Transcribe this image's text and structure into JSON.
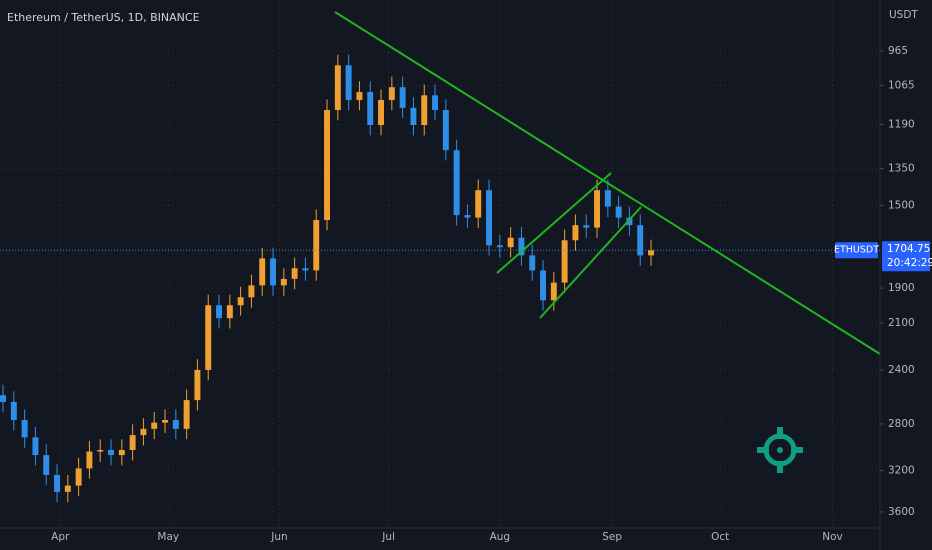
{
  "chart_data": {
    "type": "candlestick",
    "title": "Ethereum / TetherUS, 1D, BINANCE",
    "y_unit": "USDT",
    "symbol": "ETHUSDT",
    "last_price": 1704.75,
    "countdown": "20:42:29",
    "up_color": "#2f8ee8",
    "down_color": "#f0a030",
    "log_scale": true,
    "y_inverted": true,
    "grid": true,
    "categories": [
      null,
      null,
      null,
      null,
      null,
      null,
      null,
      null,
      null,
      null,
      null,
      null,
      null,
      null,
      null,
      null,
      null,
      null,
      null,
      null,
      null,
      null,
      null,
      null,
      null,
      null,
      null,
      null,
      null,
      null,
      null,
      null,
      null,
      null,
      null,
      null,
      null,
      null,
      null,
      null,
      null,
      null,
      null,
      null,
      null,
      null,
      null,
      null,
      null,
      null,
      null,
      null,
      null,
      null,
      null,
      null,
      null,
      null,
      null,
      null,
      null
    ],
    "open": [
      2580,
      2630,
      2769,
      2910,
      3061,
      3240,
      3400,
      3340,
      3180,
      3030,
      3017,
      3061,
      3017,
      2891,
      2840,
      2790,
      2769,
      2840,
      2616,
      2400,
      1995,
      2070,
      1995,
      1950,
      1885,
      1745,
      1885,
      1850,
      1795,
      1806,
      1564,
      1142,
      1005,
      1110,
      1085,
      1192,
      1110,
      1070,
      1135,
      1192,
      1095,
      1142,
      1281,
      1542,
      1553,
      1436,
      1681,
      1690,
      1645,
      1730,
      1806,
      1967,
      1870,
      1657,
      1587,
      1598,
      1436,
      1505,
      1553,
      1587,
      1730
    ],
    "high": [
      2709,
      2852,
      2997,
      3153,
      3337,
      3502,
      3502,
      3440,
      3275,
      3121,
      3153,
      3153,
      3108,
      2978,
      2925,
      2874,
      2925,
      2925,
      2694,
      2472,
      2132,
      2132,
      2055,
      2009,
      1942,
      1942,
      1942,
      1906,
      1860,
      1860,
      1611,
      1176,
      1143,
      1143,
      1228,
      1228,
      1143,
      1169,
      1228,
      1228,
      1176,
      1319,
      1588,
      1600,
      1600,
      1731,
      1741,
      1741,
      1782,
      1860,
      2026,
      2026,
      1926,
      1707,
      1646,
      1646,
      1550,
      1600,
      1635,
      1782,
      1782
    ],
    "low": [
      2503,
      2551,
      2686,
      2823,
      2969,
      3143,
      3240,
      3085,
      2939,
      2926,
      2926,
      2926,
      2804,
      2755,
      2706,
      2686,
      2686,
      2538,
      2328,
      1935,
      1935,
      1935,
      1892,
      1828,
      1693,
      1693,
      1795,
      1741,
      1741,
      1517,
      1108,
      975,
      975,
      1052,
      1052,
      1077,
      1038,
      1038,
      1101,
      1062,
      1062,
      1108,
      1243,
      1496,
      1393,
      1393,
      1631,
      1596,
      1596,
      1678,
      1752,
      1814,
      1607,
      1539,
      1539,
      1393,
      1393,
      1460,
      1506,
      1539,
      1654
    ],
    "close": [
      2630,
      2769,
      2910,
      3061,
      3240,
      3400,
      3340,
      3180,
      3030,
      3017,
      3061,
      3017,
      2891,
      2840,
      2790,
      2769,
      2840,
      2616,
      2400,
      1995,
      2070,
      1995,
      1950,
      1885,
      1745,
      1885,
      1850,
      1795,
      1806,
      1564,
      1142,
      1005,
      1110,
      1085,
      1192,
      1110,
      1070,
      1135,
      1192,
      1095,
      1142,
      1281,
      1542,
      1553,
      1436,
      1681,
      1690,
      1645,
      1730,
      1806,
      1967,
      1870,
      1657,
      1587,
      1598,
      1436,
      1505,
      1553,
      1587,
      1730,
      1705
    ],
    "ylim": [
      834,
      3770
    ],
    "yticks": [
      965,
      1065,
      1190,
      1350,
      1500,
      1900,
      2100,
      2400,
      2800,
      3200,
      3600
    ],
    "xlim": [
      -0.28,
      81.2
    ],
    "xticks": [
      {
        "value": 5.3,
        "label": "Apr"
      },
      {
        "value": 15.3,
        "label": "May"
      },
      {
        "value": 25.6,
        "label": "Jun"
      },
      {
        "value": 35.7,
        "label": "Jul"
      },
      {
        "value": 46.0,
        "label": "Aug"
      },
      {
        "value": 56.4,
        "label": "Sep"
      },
      {
        "value": 66.4,
        "label": "Oct"
      },
      {
        "value": 76.8,
        "label": "Nov"
      }
    ]
  }
}
